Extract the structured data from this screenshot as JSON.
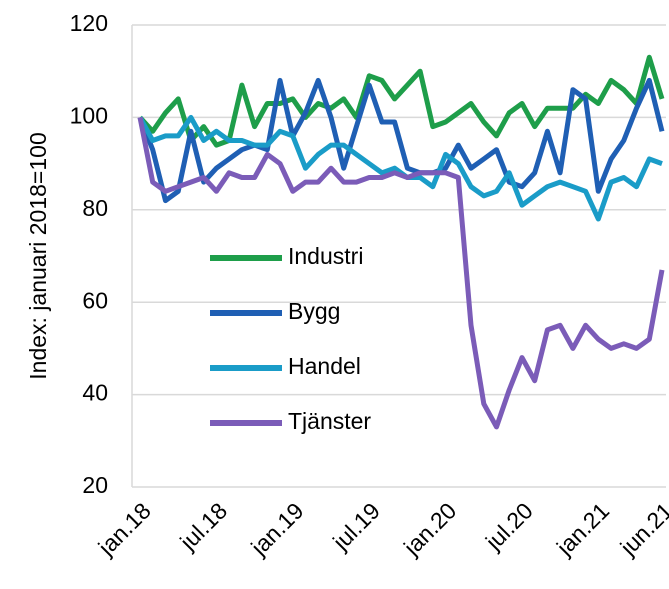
{
  "chart_data": {
    "type": "line",
    "ylabel": "Index: januari 2018=100",
    "categories": [
      "jan.18",
      null,
      null,
      null,
      null,
      null,
      "jul.18",
      null,
      null,
      null,
      null,
      null,
      "jan.19",
      null,
      null,
      null,
      null,
      null,
      "jul.19",
      null,
      null,
      null,
      null,
      null,
      "jan.20",
      null,
      null,
      null,
      null,
      null,
      "jul.20",
      null,
      null,
      null,
      null,
      null,
      "jan.21",
      null,
      null,
      null,
      null,
      "jun.21"
    ],
    "series": [
      {
        "name": "Industri",
        "color": "#1e9e4a",
        "values": [
          100,
          97,
          101,
          104,
          95,
          98,
          94,
          95,
          107,
          98,
          103,
          103,
          104,
          100,
          103,
          102,
          104,
          100,
          109,
          108,
          104,
          107,
          110,
          98,
          99,
          101,
          103,
          99,
          96,
          101,
          103,
          98,
          102,
          102,
          102,
          105,
          103,
          108,
          106,
          103,
          113,
          104
        ]
      },
      {
        "name": "Bygg",
        "color": "#1f5fb4",
        "values": [
          100,
          93,
          82,
          84,
          97,
          86,
          89,
          91,
          93,
          94,
          93,
          108,
          96,
          101,
          108,
          100,
          89,
          98,
          107,
          99,
          99,
          89,
          88,
          88,
          89,
          94,
          89,
          91,
          93,
          86,
          85,
          88,
          97,
          88,
          106,
          104,
          84,
          91,
          95,
          102,
          108,
          97
        ]
      },
      {
        "name": "Handel",
        "color": "#1a9cc8",
        "values": [
          100,
          95,
          96,
          96,
          100,
          95,
          97,
          95,
          95,
          94,
          94,
          97,
          96,
          89,
          92,
          94,
          94,
          92,
          90,
          88,
          89,
          87,
          87,
          85,
          92,
          90,
          85,
          83,
          84,
          88,
          81,
          83,
          85,
          86,
          85,
          84,
          78,
          86,
          87,
          85,
          91,
          90
        ]
      },
      {
        "name": "Tjänster",
        "color": "#7b5cb8",
        "values": [
          100,
          86,
          84,
          85,
          86,
          87,
          84,
          88,
          87,
          87,
          92,
          90,
          84,
          86,
          86,
          89,
          86,
          86,
          87,
          87,
          88,
          87,
          88,
          88,
          88,
          87,
          55,
          38,
          33,
          41,
          48,
          43,
          54,
          55,
          50,
          55,
          52,
          50,
          51,
          50,
          52,
          67
        ]
      }
    ],
    "ylim": [
      20,
      120
    ],
    "yticks": [
      20,
      40,
      60,
      80,
      100,
      120
    ],
    "grid": true
  }
}
